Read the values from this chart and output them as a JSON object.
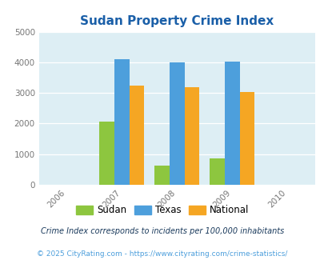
{
  "title": "Sudan Property Crime Index",
  "title_color": "#1a5fa8",
  "years": [
    2007,
    2008,
    2009
  ],
  "x_ticks": [
    2006,
    2007,
    2008,
    2009,
    2010
  ],
  "sudan_values": [
    2075,
    625,
    850
  ],
  "texas_values": [
    4100,
    4000,
    4025
  ],
  "national_values": [
    3250,
    3200,
    3025
  ],
  "sudan_color": "#8dc63f",
  "texas_color": "#4d9fdc",
  "national_color": "#f5a623",
  "ylim": [
    0,
    5000
  ],
  "yticks": [
    0,
    1000,
    2000,
    3000,
    4000,
    5000
  ],
  "bg_color": "#ddeef4",
  "bar_width": 0.27,
  "legend_labels": [
    "Sudan",
    "Texas",
    "National"
  ],
  "footnote1": "Crime Index corresponds to incidents per 100,000 inhabitants",
  "footnote2": "© 2025 CityRating.com - https://www.cityrating.com/crime-statistics/",
  "footnote1_color": "#1a3a5c",
  "footnote2_color": "#4d9fdc"
}
